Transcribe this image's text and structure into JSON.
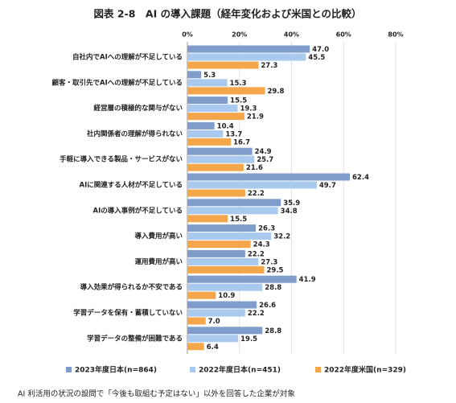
{
  "chart_data": {
    "type": "bar",
    "orientation": "horizontal",
    "title": "図表 2-8　AI の導入課題（経年変化および米国との比較）",
    "categories": [
      "自社内でAIへの理解が不足している",
      "顧客・取引先でAIへの理解が不足している",
      "経営層の積極的な関与がない",
      "社内関係者の理解が得られない",
      "手軽に導入できる製品・サービスがない",
      "AIに関連する人材が不足している",
      "AIの導入事例が不足している",
      "導入費用が高い",
      "運用費用が高い",
      "導入効果が得られるか不安である",
      "学習データを保有・蓄積していない",
      "学習データの整備が困難である"
    ],
    "series": [
      {
        "name": "2023年度日本(n=864)",
        "color": "#7f9ccb",
        "values": [
          47.0,
          5.3,
          15.5,
          10.4,
          24.9,
          62.4,
          35.9,
          26.3,
          22.2,
          41.9,
          26.6,
          28.8
        ],
        "value_labels": [
          "47.0",
          "5.3",
          "15.5",
          "10.4",
          "24.9",
          "62.4",
          "35.9",
          "26.3",
          "22.2",
          "41.9",
          "26.6",
          "28.8"
        ]
      },
      {
        "name": "2022年度日本(n=451)",
        "color": "#a9c9ef",
        "values": [
          45.5,
          15.3,
          19.3,
          13.7,
          25.7,
          49.7,
          34.8,
          32.2,
          27.3,
          28.8,
          22.2,
          19.5
        ],
        "value_labels": [
          "45.5",
          "15.3",
          "19.3",
          "13.7",
          "25.7",
          "49.7",
          "34.8",
          "32.2",
          "27.3",
          "28.8",
          "22.2",
          "19.5"
        ]
      },
      {
        "name": "2022年度米国(n=329)",
        "color": "#f5a54a",
        "values": [
          27.3,
          29.8,
          21.9,
          16.7,
          21.6,
          22.2,
          15.5,
          24.3,
          29.5,
          10.9,
          7.0,
          6.4
        ],
        "value_labels": [
          "27.3",
          "29.8",
          "21.9",
          "16.7",
          "21.6",
          "22.2",
          "15.5",
          "24.3",
          "29.5",
          "10.9",
          "7.0",
          "6.4"
        ]
      }
    ],
    "xlim": [
      0,
      80
    ],
    "xticks": [
      {
        "value": 0,
        "label": "0%"
      },
      {
        "value": 20,
        "label": "20%"
      },
      {
        "value": 40,
        "label": "40%"
      },
      {
        "value": 60,
        "label": "60%"
      },
      {
        "value": 80,
        "label": "80%"
      }
    ],
    "grid": true,
    "legend": "bottom",
    "note": "AI 利活用の状況の設問で「今後も取組む予定はない」以外を回答した企業が対象"
  }
}
